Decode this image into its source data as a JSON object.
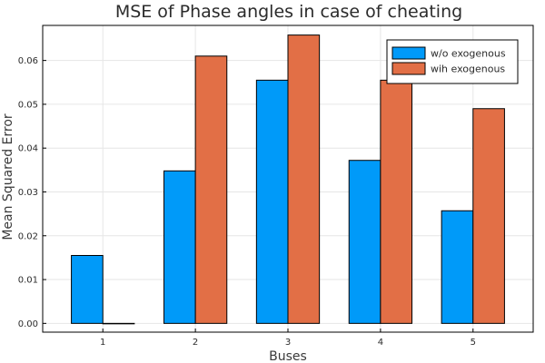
{
  "chart_data": {
    "type": "bar",
    "title": "MSE of Phase angles in case of cheating",
    "xlabel": "Buses",
    "ylabel": "Mean Squared Error",
    "categories": [
      "1",
      "2",
      "3",
      "4",
      "5"
    ],
    "series": [
      {
        "name": "w/o exogenous",
        "color": "#009af9",
        "values": [
          0.0155,
          0.0348,
          0.0555,
          0.0372,
          0.0257
        ]
      },
      {
        "name": "wih exogenous",
        "color": "#e26f46",
        "values": [
          0.0,
          0.061,
          0.0658,
          0.0555,
          0.049
        ]
      }
    ],
    "ylim": [
      -0.002,
      0.068
    ],
    "yticks": [
      "0.00",
      "0.01",
      "0.02",
      "0.03",
      "0.04",
      "0.05",
      "0.06"
    ],
    "grid": true,
    "legend": "top-right"
  }
}
